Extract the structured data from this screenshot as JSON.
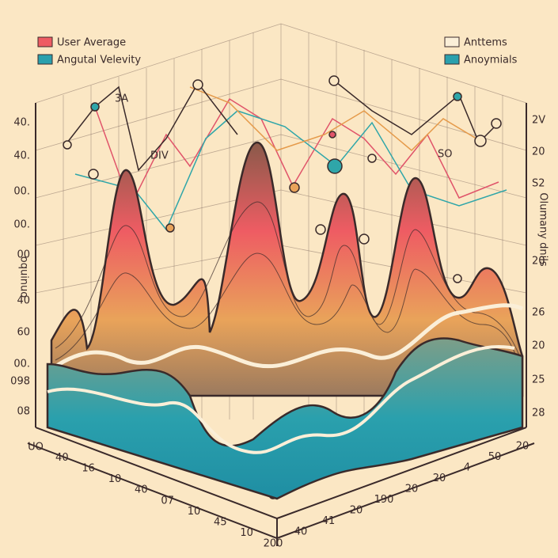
{
  "legend_left": [
    "User Average",
    "Angutal Velevity"
  ],
  "legend_right": [
    "Anttems",
    "Anoymials"
  ],
  "left_axis_labels": [
    "40.",
    "40.",
    "00.",
    "00.",
    "00",
    "40",
    "60",
    "00.",
    "098",
    "08"
  ],
  "left_axis_title": "oquinuo",
  "right_axis_labels": [
    "2V",
    "20",
    "S2",
    "20",
    "26",
    "20",
    "25",
    "28"
  ],
  "right_axis_title": "Olumany dnils",
  "annotations": [
    "3A",
    "DIV",
    "SO"
  ],
  "bottom_left_labels": [
    "UO",
    "40",
    "16",
    "10",
    "40",
    "07",
    "10",
    "45",
    "10",
    "200"
  ],
  "bottom_right_labels": [
    "40",
    "41",
    "20",
    "190",
    "20",
    "20",
    "4",
    "50",
    "20"
  ]
}
